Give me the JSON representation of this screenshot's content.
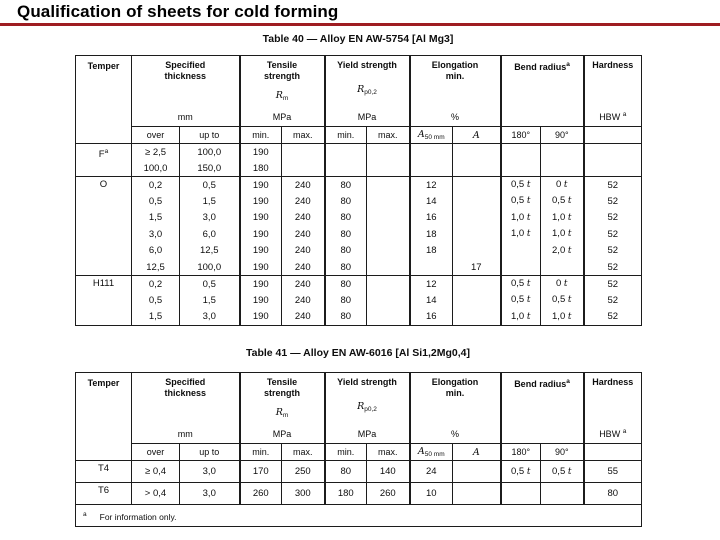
{
  "slide": {
    "title": "Qualification of sheets for cold forming"
  },
  "theme": {
    "accent_red": "#9e1c21",
    "border_color": "#1c1c1c"
  },
  "header_labels": {
    "temper": "Temper",
    "thickness": "Specified\nthickness",
    "thickness_unit": "mm",
    "tensile": "Tensile\nstrength",
    "tensile_sym": "R",
    "tensile_sub": "m",
    "tensile_unit": "MPa",
    "yield": "Yield strength",
    "yield_sym": "R",
    "yield_sub": "p0,2",
    "yield_unit": "MPa",
    "elongation": "Elongation\nmin.",
    "elongation_unit": "%",
    "bend": "Bend radius",
    "bend_sup": "a",
    "hardness": "Hardness",
    "hardness_unit": "HBW",
    "hardness_sup": "a",
    "over": "over",
    "up_to": "up to",
    "min": "min.",
    "max": "max.",
    "a50_sym": "A",
    "a50_sub": "50 mm",
    "a_sym": "A",
    "deg180": "180°",
    "deg90": "90°"
  },
  "table40": {
    "caption": "Table 40 — Alloy EN AW-5754 [Al Mg3]",
    "groups": [
      {
        "temper": "F",
        "temper_sup": "a",
        "rows": [
          [
            "≥ 2,5",
            "100,0",
            "190",
            "",
            "",
            "",
            "",
            "",
            "",
            "",
            ""
          ],
          [
            "100,0",
            "150,0",
            "180",
            "",
            "",
            "",
            "",
            "",
            "",
            "",
            ""
          ]
        ]
      },
      {
        "temper": "O",
        "temper_sup": "",
        "rows": [
          [
            "0,2",
            "0,5",
            "190",
            "240",
            "80",
            "",
            "12",
            "",
            "0,5 t",
            "0 t",
            "52"
          ],
          [
            "0,5",
            "1,5",
            "190",
            "240",
            "80",
            "",
            "14",
            "",
            "0,5 t",
            "0,5 t",
            "52"
          ],
          [
            "1,5",
            "3,0",
            "190",
            "240",
            "80",
            "",
            "16",
            "",
            "1,0 t",
            "1,0 t",
            "52"
          ],
          [
            "3,0",
            "6,0",
            "190",
            "240",
            "80",
            "",
            "18",
            "",
            "1,0 t",
            "1,0 t",
            "52"
          ],
          [
            "6,0",
            "12,5",
            "190",
            "240",
            "80",
            "",
            "18",
            "",
            "",
            "2,0 t",
            "52"
          ],
          [
            "12,5",
            "100,0",
            "190",
            "240",
            "80",
            "",
            "",
            "17",
            "",
            "",
            "52"
          ]
        ]
      },
      {
        "temper": "H111",
        "temper_sup": "",
        "rows": [
          [
            "0,2",
            "0,5",
            "190",
            "240",
            "80",
            "",
            "12",
            "",
            "0,5 t",
            "0 t",
            "52"
          ],
          [
            "0,5",
            "1,5",
            "190",
            "240",
            "80",
            "",
            "14",
            "",
            "0,5 t",
            "0,5 t",
            "52"
          ],
          [
            "1,5",
            "3,0",
            "190",
            "240",
            "80",
            "",
            "16",
            "",
            "1,0 t",
            "1,0 t",
            "52"
          ]
        ]
      }
    ]
  },
  "table41": {
    "caption": "Table 41 — Alloy EN AW-6016 [Al Si1,2Mg0,4]",
    "groups": [
      {
        "temper": "T4",
        "temper_sup": "",
        "rows": [
          [
            "≥ 0,4",
            "3,0",
            "170",
            "250",
            "80",
            "140",
            "24",
            "",
            "0,5 t",
            "0,5 t",
            "55"
          ]
        ]
      },
      {
        "temper": "T6",
        "temper_sup": "",
        "rows": [
          [
            "> 0,4",
            "3,0",
            "260",
            "300",
            "180",
            "260",
            "10",
            "",
            "",
            "",
            "80"
          ]
        ]
      }
    ],
    "footnote_marker": "a",
    "footnote": "For information only."
  }
}
